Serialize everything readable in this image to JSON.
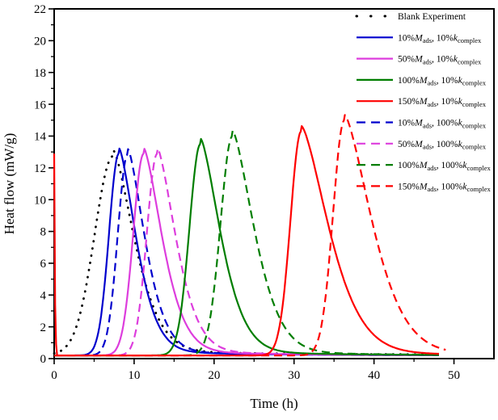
{
  "figure": {
    "x_axis_title": "Time (h)",
    "y_axis_title": "Heat flow (mW/g)"
  },
  "chart_data": {
    "type": "line",
    "title": "",
    "xlabel": "Time (h)",
    "ylabel": "Heat flow (mW/g)",
    "xlim": [
      0,
      55
    ],
    "ylim": [
      0,
      22
    ],
    "x_major_ticks": [
      0,
      10,
      20,
      30,
      40,
      50
    ],
    "x_minor_ticks": [
      5,
      15,
      25,
      35,
      45
    ],
    "y_major_ticks": [
      0,
      2,
      4,
      6,
      8,
      10,
      12,
      14,
      16,
      18,
      20,
      22
    ],
    "y_minor_ticks": [
      1,
      3,
      5,
      7,
      9,
      11,
      13,
      15,
      17,
      19,
      21
    ],
    "grid": false,
    "legend_position": "top-right-inside",
    "axis_color": "#000000",
    "series": [
      {
        "id": "blank",
        "label": "Blank Experiment",
        "color": "#000000",
        "line_style": "dotted",
        "draw_order": 1,
        "baseline": 0.25,
        "peak_time": 7.4,
        "peak_value": 12.75,
        "rise_width": 3.3,
        "fall_width": 3.8,
        "end_time": 47.6,
        "label_parts": [
          [
            "t",
            "Blank Experiment"
          ]
        ]
      },
      {
        "id": "m10-k10",
        "label": "10%Mads, 10%kcomplex",
        "color": "#0000CD",
        "line_style": "solid",
        "draw_order": 2,
        "baseline": 0.2,
        "peak_time": 8.1,
        "peak_value": 12.9,
        "rise_width": 1.75,
        "fall_width": 3.1,
        "end_time": 48.2,
        "label_parts": [
          [
            "t",
            "10%"
          ],
          [
            "i",
            "M"
          ],
          [
            "sub",
            "ads"
          ],
          [
            "t",
            ", 10%"
          ],
          [
            "i",
            "k"
          ],
          [
            "sub",
            "complex"
          ]
        ]
      },
      {
        "id": "m50-k10",
        "label": "50%Mads, 10%kcomplex",
        "color": "#DD3DDD",
        "line_style": "solid",
        "draw_order": 4,
        "baseline": 0.2,
        "peak_time": 11.2,
        "peak_value": 12.9,
        "rise_width": 1.85,
        "fall_width": 3.35,
        "end_time": 48.2,
        "label_parts": [
          [
            "t",
            "50%"
          ],
          [
            "i",
            "M"
          ],
          [
            "sub",
            "ads"
          ],
          [
            "t",
            ", 10%"
          ],
          [
            "i",
            "k"
          ],
          [
            "sub",
            "complex"
          ]
        ]
      },
      {
        "id": "m100-k10",
        "label": "100%Mads, 10%kcomplex",
        "color": "#007E00",
        "line_style": "solid",
        "draw_order": 6,
        "baseline": 0.2,
        "peak_time": 18.3,
        "peak_value": 13.5,
        "rise_width": 1.95,
        "fall_width": 3.6,
        "end_time": 48.2,
        "label_parts": [
          [
            "t",
            "100%"
          ],
          [
            "i",
            "M"
          ],
          [
            "sub",
            "ads"
          ],
          [
            "t",
            ", 10%"
          ],
          [
            "i",
            "k"
          ],
          [
            "sub",
            "complex"
          ]
        ]
      },
      {
        "id": "m150-k10",
        "label": "150%Mads, 10%kcomplex",
        "color": "#FE0000",
        "line_style": "solid",
        "draw_order": 9,
        "baseline": 0.2,
        "peak_time": 30.9,
        "peak_value": 14.3,
        "rise_width": 1.9,
        "fall_width": 4.9,
        "end_time": 48.2,
        "init_spike_value": 12.9,
        "label_parts": [
          [
            "t",
            "150%"
          ],
          [
            "i",
            "M"
          ],
          [
            "sub",
            "ads"
          ],
          [
            "t",
            ", 10%"
          ],
          [
            "i",
            "k"
          ],
          [
            "sub",
            "complex"
          ]
        ]
      },
      {
        "id": "m10-k100",
        "label": "10%Mads, 100%kcomplex",
        "color": "#0000CD",
        "line_style": "dashed",
        "draw_order": 3,
        "baseline": 0.2,
        "peak_time": 9.2,
        "peak_value": 12.85,
        "rise_width": 1.75,
        "fall_width": 3.1,
        "end_time": 48.2,
        "label_parts": [
          [
            "t",
            "10%"
          ],
          [
            "i",
            "M"
          ],
          [
            "sub",
            "ads"
          ],
          [
            "t",
            ", 100%"
          ],
          [
            "i",
            "k"
          ],
          [
            "sub",
            "complex"
          ]
        ]
      },
      {
        "id": "m50-k100",
        "label": "50%Mads, 100%kcomplex",
        "color": "#DD3DDD",
        "line_style": "dashed",
        "draw_order": 5,
        "baseline": 0.2,
        "peak_time": 12.9,
        "peak_value": 12.9,
        "rise_width": 1.85,
        "fall_width": 3.35,
        "end_time": 48.2,
        "label_parts": [
          [
            "t",
            "50%"
          ],
          [
            "i",
            "M"
          ],
          [
            "sub",
            "ads"
          ],
          [
            "t",
            ", 100%"
          ],
          [
            "i",
            "k"
          ],
          [
            "sub",
            "complex"
          ]
        ]
      },
      {
        "id": "m100-k100",
        "label": "100%Mads, 100%kcomplex",
        "color": "#007E00",
        "line_style": "dashed",
        "draw_order": 7,
        "baseline": 0.2,
        "peak_time": 22.3,
        "peak_value": 14.0,
        "rise_width": 2.1,
        "fall_width": 3.9,
        "end_time": 48.2,
        "label_parts": [
          [
            "t",
            "100%"
          ],
          [
            "i",
            "M"
          ],
          [
            "sub",
            "ads"
          ],
          [
            "t",
            ", 100%"
          ],
          [
            "i",
            "k"
          ],
          [
            "sub",
            "complex"
          ]
        ]
      },
      {
        "id": "m150-k100",
        "label": "150%Mads, 100%kcomplex",
        "color": "#FE0000",
        "line_style": "dashed",
        "draw_order": 8,
        "baseline": 0.2,
        "peak_time": 36.3,
        "peak_value": 15.0,
        "rise_width": 2.0,
        "fall_width": 4.9,
        "end_time": 49.0,
        "label_parts": [
          [
            "t",
            "150%"
          ],
          [
            "i",
            "M"
          ],
          [
            "sub",
            "ads"
          ],
          [
            "t",
            ", 100%"
          ],
          [
            "i",
            "k"
          ],
          [
            "sub",
            "complex"
          ]
        ]
      }
    ]
  }
}
